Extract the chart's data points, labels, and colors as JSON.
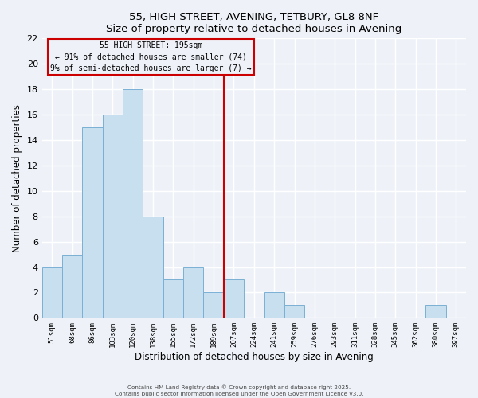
{
  "title": "55, HIGH STREET, AVENING, TETBURY, GL8 8NF",
  "subtitle": "Size of property relative to detached houses in Avening",
  "xlabel": "Distribution of detached houses by size in Avening",
  "ylabel": "Number of detached properties",
  "bar_color": "#c8dff0",
  "bar_edge_color": "#7ab0d4",
  "background_color": "#eef2f8",
  "grid_color": "#ffffff",
  "categories": [
    "51sqm",
    "68sqm",
    "86sqm",
    "103sqm",
    "120sqm",
    "138sqm",
    "155sqm",
    "172sqm",
    "189sqm",
    "207sqm",
    "224sqm",
    "241sqm",
    "259sqm",
    "276sqm",
    "293sqm",
    "311sqm",
    "328sqm",
    "345sqm",
    "362sqm",
    "380sqm",
    "397sqm"
  ],
  "values": [
    4,
    5,
    15,
    16,
    18,
    8,
    3,
    4,
    2,
    3,
    0,
    2,
    1,
    0,
    0,
    0,
    0,
    0,
    0,
    1,
    0
  ],
  "ylim": [
    0,
    22
  ],
  "yticks": [
    0,
    2,
    4,
    6,
    8,
    10,
    12,
    14,
    16,
    18,
    20,
    22
  ],
  "vline_x": 8.5,
  "vline_color": "#cc0000",
  "annotation_title": "55 HIGH STREET: 195sqm",
  "annotation_line1": "← 91% of detached houses are smaller (74)",
  "annotation_line2": "9% of semi-detached houses are larger (7) →",
  "annotation_box_edge": "#cc0000",
  "footer_line1": "Contains HM Land Registry data © Crown copyright and database right 2025.",
  "footer_line2": "Contains public sector information licensed under the Open Government Licence v3.0."
}
